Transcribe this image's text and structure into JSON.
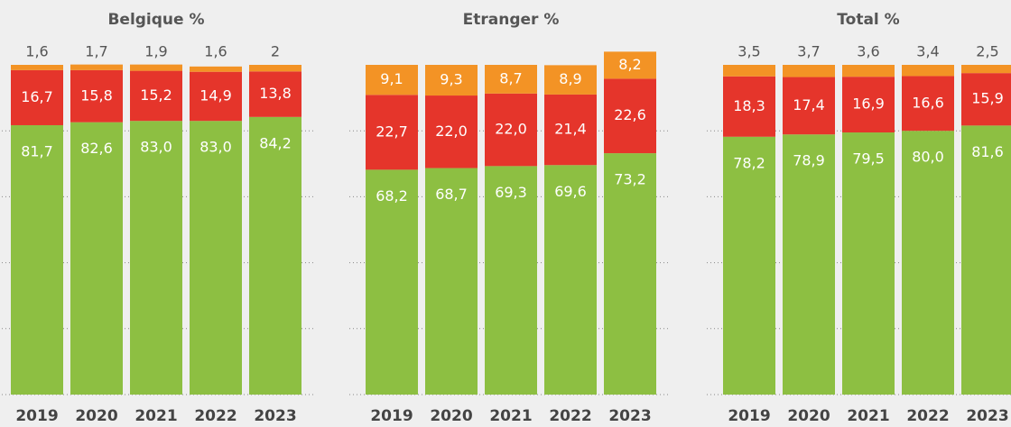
{
  "chart_data": [
    {
      "type": "stacked-bar",
      "title": "Belgique %",
      "categories": [
        "2019",
        "2020",
        "2021",
        "2022",
        "2023"
      ],
      "ylim": [
        0,
        100
      ],
      "yticks": [
        0,
        20,
        40,
        60,
        80
      ],
      "grid": true,
      "series": [
        {
          "color": "#8dbf42",
          "values": [
            81.7,
            82.6,
            83.0,
            83.0,
            84.2
          ],
          "value_labels": [
            "81,7",
            "82,6",
            "83,0",
            "83,0",
            "84,2"
          ]
        },
        {
          "color": "#e5352b",
          "values": [
            16.7,
            15.8,
            15.2,
            14.9,
            13.8
          ],
          "value_labels": [
            "16,7",
            "15,8",
            "15,2",
            "14,9",
            "13,8"
          ]
        },
        {
          "color": "#f39325",
          "values": [
            1.6,
            1.7,
            1.9,
            1.6,
            2
          ],
          "value_labels": [
            "1,6",
            "1,7",
            "1,9",
            "1,6",
            "2"
          ]
        }
      ]
    },
    {
      "type": "stacked-bar",
      "title": "Etranger %",
      "categories": [
        "2019",
        "2020",
        "2021",
        "2022",
        "2023"
      ],
      "ylim": [
        0,
        100
      ],
      "yticks": [
        0,
        20,
        40,
        60,
        80
      ],
      "grid": true,
      "series": [
        {
          "color": "#8dbf42",
          "values": [
            68.2,
            68.7,
            69.3,
            69.6,
            73.2
          ],
          "value_labels": [
            "68,2",
            "68,7",
            "69,3",
            "69,6",
            "73,2"
          ]
        },
        {
          "color": "#e5352b",
          "values": [
            22.7,
            22.0,
            22.0,
            21.4,
            22.6
          ],
          "value_labels": [
            "22,7",
            "22,0",
            "22,0",
            "21,4",
            "22,6"
          ]
        },
        {
          "color": "#f39325",
          "values": [
            9.1,
            9.3,
            8.7,
            8.9,
            8.2
          ],
          "value_labels": [
            "9,1",
            "9,3",
            "8,7",
            "8,9",
            "8,2"
          ]
        }
      ]
    },
    {
      "type": "stacked-bar",
      "title": "Total %",
      "categories": [
        "2019",
        "2020",
        "2021",
        "2022",
        "2023"
      ],
      "ylim": [
        0,
        100
      ],
      "yticks": [
        0,
        20,
        40,
        60,
        80
      ],
      "grid": true,
      "series": [
        {
          "color": "#8dbf42",
          "values": [
            78.2,
            78.9,
            79.5,
            80.0,
            81.6
          ],
          "value_labels": [
            "78,2",
            "78,9",
            "79,5",
            "80,0",
            "81,6"
          ]
        },
        {
          "color": "#e5352b",
          "values": [
            18.3,
            17.4,
            16.9,
            16.6,
            15.9
          ],
          "value_labels": [
            "18,3",
            "17,4",
            "16,9",
            "16,6",
            "15,9"
          ]
        },
        {
          "color": "#f39325",
          "values": [
            3.5,
            3.7,
            3.6,
            3.4,
            2.5
          ],
          "value_labels": [
            "3,5",
            "3,7",
            "3,6",
            "3,4",
            "2,5"
          ]
        }
      ]
    }
  ]
}
